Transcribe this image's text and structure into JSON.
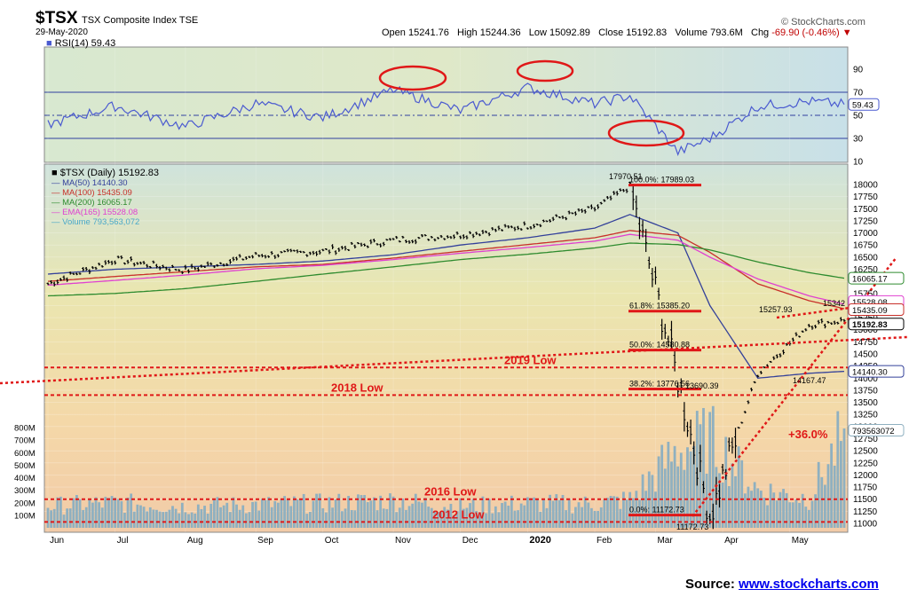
{
  "header": {
    "ticker": "$TSX",
    "index_name": "TSX Composite Index  TSE",
    "date": "29-May-2020",
    "credit": "© StockCharts.com",
    "open_label": "Open",
    "open": "15241.76",
    "high_label": "High",
    "high": "15244.36",
    "low_label": "Low",
    "low": "15092.89",
    "close_label": "Close",
    "close": "15192.83",
    "volume_label": "Volume",
    "volume": "793.6M",
    "chg_label": "Chg",
    "chg": "-69.90 (-0.46%)"
  },
  "rsi_panel": {
    "label": "RSI(14) 59.43",
    "current_value": "59.43",
    "ticks": [
      "90",
      "70",
      "50",
      "30",
      "10"
    ],
    "overbought": 70,
    "oversold": 30
  },
  "legend": {
    "title": "$TSX (Daily) 15192.83",
    "items": [
      {
        "text": "MA(50) 14140.30",
        "color": "#33409a"
      },
      {
        "text": "MA(100) 15435.09",
        "color": "#c8302a"
      },
      {
        "text": "MA(200) 16065.17",
        "color": "#2e8b2e"
      },
      {
        "text": "EMA(165) 15528.08",
        "color": "#e040d0"
      },
      {
        "text": "Volume 793,563,072",
        "color": "#4aa8c8"
      }
    ]
  },
  "annotations": {
    "fib_100": "100.0%: 17989.03",
    "fib_618": "61.8%: 15385.20",
    "fib_50": "50.0%: 14580.88",
    "fib_382": "38.2%: 13776.56",
    "fib_0": "0.0%: 11172.73",
    "high_label": "17970.51",
    "low_label": "11172.73",
    "rebound_high_1": "15257.93",
    "rebound_high_2": "15342",
    "pullback_low": "14167.47",
    "mar_bounce": "13690.39",
    "level_2019": "2019 Low",
    "level_2018": "2018 Low",
    "level_2016": "2016 Low",
    "level_2012": "2012 Low",
    "gain": "+36.0%"
  },
  "right_axis_tags": {
    "ma200": "16065.17",
    "ma100": "15435.09",
    "ema165": "15528.08",
    "close": "15192.83",
    "ma50": "14140.30",
    "volume": "793563072"
  },
  "footer": {
    "source_label": "Source:",
    "source_link": "www.stockcharts.com"
  },
  "chart_data": {
    "type": "line",
    "title": "$TSX TSX Composite Index TSE",
    "price_axis": {
      "ylim": [
        11000,
        18000
      ],
      "ticks": [
        "18000",
        "17750",
        "17500",
        "17250",
        "17000",
        "16750",
        "16500",
        "16250",
        "16000",
        "15750",
        "15500",
        "15250",
        "15000",
        "14750",
        "14500",
        "14250",
        "14000",
        "13750",
        "13500",
        "13250",
        "13000",
        "12750",
        "12500",
        "12250",
        "12000",
        "11750",
        "11500",
        "11250",
        "11000"
      ]
    },
    "volume_axis": {
      "ylim": [
        0,
        800
      ],
      "ticks": [
        "800M",
        "700M",
        "600M",
        "500M",
        "400M",
        "300M",
        "200M",
        "100M"
      ]
    },
    "x_labels": [
      "Jun",
      "Jul",
      "Aug",
      "Sep",
      "Oct",
      "Nov",
      "Dec",
      "2020",
      "Feb",
      "Mar",
      "Apr",
      "May"
    ],
    "price_series": {
      "name": "$TSX (Daily)",
      "x": [
        "Jun",
        "Jul",
        "Aug",
        "Sep",
        "Oct",
        "Nov",
        "Dec",
        "2020",
        "Feb",
        "Feb-20",
        "Mar",
        "Mar-23",
        "Apr",
        "May",
        "May-29"
      ],
      "values": [
        15950,
        16450,
        16230,
        16530,
        16620,
        16850,
        16960,
        17150,
        17500,
        17970,
        14000,
        11172,
        14100,
        15100,
        15192
      ]
    },
    "ma50": {
      "name": "MA(50)",
      "values": [
        16150,
        16250,
        16300,
        16350,
        16420,
        16550,
        16750,
        16900,
        17100,
        17380,
        17000,
        15500,
        14000,
        14100,
        14140
      ]
    },
    "ma100": {
      "name": "MA(100)",
      "values": [
        16000,
        16100,
        16200,
        16300,
        16350,
        16480,
        16620,
        16760,
        16900,
        17050,
        16950,
        16600,
        15950,
        15600,
        15435
      ]
    },
    "ma200": {
      "name": "MA(200)",
      "values": [
        15700,
        15750,
        15850,
        16000,
        16150,
        16300,
        16450,
        16560,
        16690,
        16790,
        16760,
        16650,
        16400,
        16180,
        16065
      ]
    },
    "ema165": {
      "name": "EMA(165)",
      "values": [
        15920,
        16020,
        16130,
        16260,
        16330,
        16450,
        16580,
        16700,
        16830,
        16970,
        16850,
        16500,
        16050,
        15700,
        15528
      ]
    },
    "rsi_values": [
      42,
      58,
      40,
      60,
      48,
      72,
      54,
      74,
      60,
      67,
      18,
      30,
      58,
      62,
      59.43
    ],
    "volume_values_m": [
      185,
      210,
      180,
      195,
      205,
      230,
      180,
      205,
      200,
      240,
      650,
      760,
      320,
      250,
      793
    ],
    "levels": [
      {
        "label": "2019 Low",
        "value": 14220
      },
      {
        "label": "2018 Low",
        "value": 13650
      },
      {
        "label": "2016 Low",
        "value": 11500
      },
      {
        "label": "2012 Low",
        "value": 11030
      }
    ],
    "fibonacci": [
      {
        "label": "100.0%",
        "value": 17989.03
      },
      {
        "label": "61.8%",
        "value": 15385.2
      },
      {
        "label": "50.0%",
        "value": 14580.88
      },
      {
        "label": "38.2%",
        "value": 13776.56
      },
      {
        "label": "0.0%",
        "value": 11172.73
      }
    ],
    "gain_annotation": "+36.0%"
  },
  "colors": {
    "rsi_line": "#4a5ad0",
    "price_bar": "#000000",
    "ma50": "#33409a",
    "ma100": "#c8302a",
    "ma200": "#2e8b2e",
    "ema165": "#e040d0",
    "volume": "#8fb0c0",
    "annotation": "#e01818",
    "link": "#0000ee"
  }
}
